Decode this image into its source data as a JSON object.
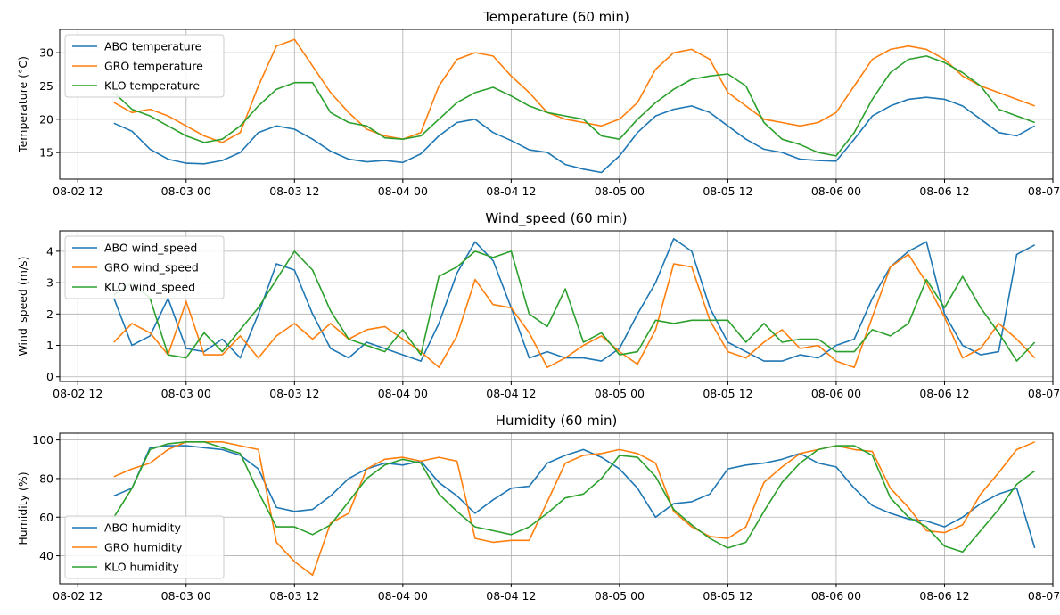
{
  "colors": {
    "ABO": "#1f77b4",
    "GRO": "#ff7f0e",
    "KLO": "#2ca02c"
  },
  "x_ticks": [
    "08-02 12",
    "08-03 00",
    "08-03 12",
    "08-04 00",
    "08-04 12",
    "08-05 00",
    "08-05 12",
    "08-06 00",
    "08-06 12",
    "08-07 00"
  ],
  "chart_data": [
    {
      "type": "line",
      "title": "Temperature (60 min)",
      "ylabel": "Temperature (°C)",
      "xlim": [
        -2,
        108
      ],
      "ylim": [
        11,
        33.5
      ],
      "yticks": [
        15,
        20,
        25,
        30
      ],
      "grid": true,
      "legend": "top-left",
      "x_hours_since_08_02_12": [
        4,
        6,
        8,
        10,
        12,
        14,
        16,
        18,
        20,
        22,
        24,
        26,
        28,
        30,
        32,
        34,
        36,
        38,
        40,
        42,
        44,
        46,
        48,
        50,
        52,
        54,
        56,
        58,
        60,
        62,
        64,
        66,
        68,
        70,
        72,
        74,
        76,
        78,
        80,
        82,
        84,
        86,
        88,
        90,
        92,
        94,
        96,
        98,
        100,
        102,
        104,
        106
      ],
      "series": [
        {
          "name": "ABO temperature",
          "color_key": "ABO",
          "values": [
            19.4,
            18.2,
            15.5,
            14.0,
            13.4,
            13.3,
            13.8,
            15.0,
            18.0,
            19.0,
            18.5,
            17.0,
            15.2,
            14.0,
            13.6,
            13.8,
            13.5,
            14.8,
            17.5,
            19.5,
            20.0,
            18.0,
            16.8,
            15.4,
            15.0,
            13.2,
            12.5,
            12.0,
            14.5,
            18.0,
            20.5,
            21.5,
            22.0,
            21.0,
            19.0,
            17.0,
            15.5,
            15.0,
            14.0,
            13.8,
            13.7,
            17.0,
            20.5,
            22.0,
            23.0,
            23.3,
            23.0,
            22.0,
            20.0,
            18.0,
            17.5,
            19.0
          ]
        },
        {
          "name": "GRO temperature",
          "color_key": "GRO",
          "values": [
            22.5,
            21.0,
            21.5,
            20.5,
            19.0,
            17.5,
            16.5,
            18.0,
            25.0,
            31.0,
            32.0,
            28.0,
            24.0,
            21.0,
            18.5,
            17.5,
            17.0,
            18.0,
            25.0,
            29.0,
            30.0,
            29.5,
            26.5,
            24.0,
            21.0,
            20.0,
            19.5,
            19.0,
            20.0,
            22.5,
            27.5,
            30.0,
            30.5,
            29.0,
            24.0,
            22.0,
            20.0,
            19.5,
            19.0,
            19.5,
            21.0,
            25.0,
            29.0,
            30.5,
            31.0,
            30.5,
            29.0,
            26.5,
            25.0,
            24.0,
            23.0,
            22.0
          ]
        },
        {
          "name": "KLO temperature",
          "color_key": "KLO",
          "values": [
            24.0,
            21.5,
            20.5,
            19.0,
            17.5,
            16.5,
            17.0,
            19.0,
            22.0,
            24.5,
            25.5,
            25.5,
            21.0,
            19.5,
            19.0,
            17.2,
            17.0,
            17.5,
            20.0,
            22.5,
            24.0,
            24.8,
            23.5,
            22.0,
            21.0,
            20.5,
            20.0,
            17.5,
            17.0,
            20.0,
            22.5,
            24.5,
            26.0,
            26.5,
            26.8,
            25.0,
            19.5,
            17.0,
            16.2,
            15.0,
            14.5,
            18.0,
            23.0,
            27.0,
            29.0,
            29.5,
            28.5,
            27.0,
            25.0,
            21.5,
            20.5,
            19.5
          ]
        }
      ]
    },
    {
      "type": "line",
      "title": "Wind_speed (60 min)",
      "ylabel": "Wind_speed (m/s)",
      "xlim": [
        -2,
        108
      ],
      "ylim": [
        -0.15,
        4.65
      ],
      "yticks": [
        0,
        1,
        2,
        3,
        4
      ],
      "grid": true,
      "legend": "top-left",
      "x_hours_since_08_02_12": [
        4,
        6,
        8,
        10,
        12,
        14,
        16,
        18,
        20,
        22,
        24,
        26,
        28,
        30,
        32,
        34,
        36,
        38,
        40,
        42,
        44,
        46,
        48,
        50,
        52,
        54,
        56,
        58,
        60,
        62,
        64,
        66,
        68,
        70,
        72,
        74,
        76,
        78,
        80,
        82,
        84,
        86,
        88,
        90,
        92,
        94,
        96,
        98,
        100,
        102,
        104,
        106
      ],
      "series": [
        {
          "name": "ABO wind_speed",
          "color_key": "ABO",
          "values": [
            2.5,
            1.0,
            1.3,
            2.5,
            0.9,
            0.8,
            1.2,
            0.6,
            2.0,
            3.6,
            3.4,
            2.0,
            0.9,
            0.6,
            1.1,
            0.9,
            0.7,
            0.5,
            1.7,
            3.3,
            4.3,
            3.7,
            2.2,
            0.6,
            0.8,
            0.6,
            0.6,
            0.5,
            0.9,
            2.0,
            3.0,
            4.4,
            4.0,
            2.2,
            1.1,
            0.8,
            0.5,
            0.5,
            0.7,
            0.6,
            1.0,
            1.2,
            2.5,
            3.5,
            4.0,
            4.3,
            2.0,
            1.0,
            0.7,
            0.8,
            3.9,
            4.2
          ]
        },
        {
          "name": "GRO wind_speed",
          "color_key": "GRO",
          "values": [
            1.1,
            1.7,
            1.4,
            0.7,
            2.4,
            0.7,
            0.7,
            1.3,
            0.6,
            1.3,
            1.7,
            1.2,
            1.7,
            1.2,
            1.5,
            1.6,
            1.2,
            0.8,
            0.3,
            1.3,
            3.1,
            2.3,
            2.2,
            1.4,
            0.3,
            0.6,
            1.0,
            1.3,
            0.8,
            0.4,
            1.5,
            3.6,
            3.5,
            1.8,
            0.8,
            0.6,
            1.1,
            1.5,
            0.9,
            1.0,
            0.5,
            0.3,
            1.9,
            3.5,
            3.9,
            3.0,
            1.9,
            0.6,
            0.9,
            1.7,
            1.2,
            0.6
          ]
        },
        {
          "name": "KLO wind_speed",
          "color_key": "KLO",
          "values": [
            2.6,
            3.0,
            2.5,
            0.7,
            0.6,
            1.4,
            0.8,
            1.5,
            2.2,
            3.1,
            4.0,
            3.4,
            2.1,
            1.2,
            1.0,
            0.8,
            1.5,
            0.7,
            3.2,
            3.5,
            4.0,
            3.8,
            4.0,
            2.0,
            1.6,
            2.8,
            1.1,
            1.4,
            0.7,
            0.8,
            1.8,
            1.7,
            1.8,
            1.8,
            1.8,
            1.1,
            1.7,
            1.1,
            1.2,
            1.2,
            0.8,
            0.8,
            1.5,
            1.3,
            1.7,
            3.1,
            2.2,
            3.2,
            2.2,
            1.4,
            0.5,
            1.1
          ]
        }
      ]
    },
    {
      "type": "line",
      "title": "Humidity (60 min)",
      "ylabel": "Humidity (%)",
      "xlim": [
        -2,
        108
      ],
      "ylim": [
        25.5,
        103.5
      ],
      "yticks": [
        40,
        60,
        80,
        100
      ],
      "grid": true,
      "legend": "bottom-left",
      "x_hours_since_08_02_12": [
        4,
        6,
        8,
        10,
        12,
        14,
        16,
        18,
        20,
        22,
        24,
        26,
        28,
        30,
        32,
        34,
        36,
        38,
        40,
        42,
        44,
        46,
        48,
        50,
        52,
        54,
        56,
        58,
        60,
        62,
        64,
        66,
        68,
        70,
        72,
        74,
        76,
        78,
        80,
        82,
        84,
        86,
        88,
        90,
        92,
        94,
        96,
        98,
        100,
        102,
        104,
        106
      ],
      "series": [
        {
          "name": "ABO humidity",
          "color_key": "ABO",
          "values": [
            71,
            75,
            96,
            97,
            97,
            96,
            95,
            92,
            85,
            65,
            63,
            64,
            71,
            80,
            85,
            88,
            87,
            89,
            78,
            71,
            62,
            69,
            75,
            76,
            88,
            92,
            95,
            91,
            85,
            75,
            60,
            67,
            68,
            72,
            85,
            87,
            88,
            90,
            93,
            88,
            86,
            75,
            66,
            62,
            59,
            58,
            55,
            60,
            67,
            72,
            75,
            44
          ]
        },
        {
          "name": "GRO humidity",
          "color_key": "GRO",
          "values": [
            81,
            85,
            88,
            95,
            99,
            99,
            99,
            97,
            95,
            47,
            37,
            30,
            57,
            62,
            85,
            90,
            91,
            89,
            91,
            89,
            49,
            47,
            48,
            48,
            68,
            88,
            92,
            93,
            95,
            93,
            88,
            63,
            55,
            50,
            49,
            55,
            78,
            86,
            93,
            95,
            97,
            95,
            94,
            75,
            65,
            53,
            52,
            56,
            72,
            83,
            95,
            99
          ]
        },
        {
          "name": "KLO humidity",
          "color_key": "KLO",
          "values": [
            60,
            75,
            95,
            98,
            99,
            99,
            96,
            93,
            73,
            55,
            55,
            51,
            56,
            68,
            80,
            87,
            90,
            88,
            72,
            63,
            55,
            53,
            51,
            55,
            62,
            70,
            72,
            80,
            92,
            91,
            81,
            64,
            56,
            49,
            44,
            47,
            63,
            78,
            88,
            95,
            97,
            97,
            92,
            70,
            60,
            55,
            45,
            42,
            53,
            64,
            77,
            84
          ]
        }
      ]
    }
  ]
}
